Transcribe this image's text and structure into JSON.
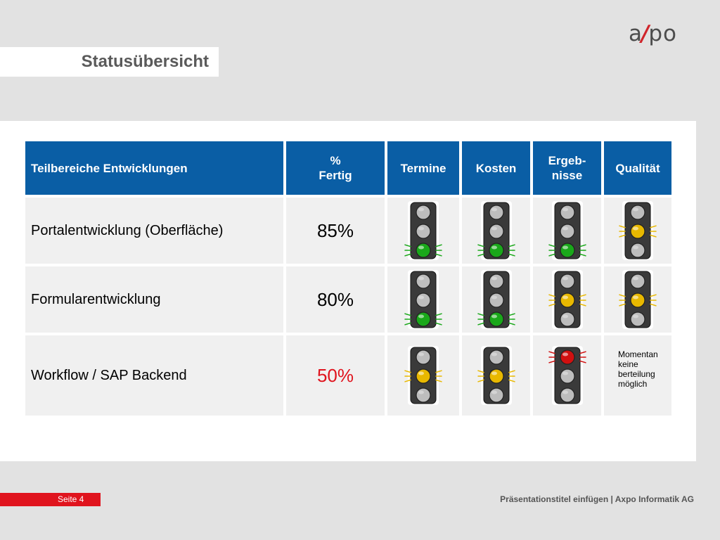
{
  "slide": {
    "title": "Statusübersicht",
    "logo": {
      "left": "a",
      "slash": "/",
      "right": "po"
    }
  },
  "table": {
    "headers": {
      "area": "Teilbereiche Entwicklungen",
      "pct_line1": "%",
      "pct_line2": "Fertig",
      "termine": "Termine",
      "kosten": "Kosten",
      "ergeb_line1": "Ergeb-",
      "ergeb_line2": "nisse",
      "qualitaet": "Qualität"
    },
    "rows": [
      {
        "name": "Portalentwicklung (Oberfläche)",
        "pct": "85%",
        "lights": [
          "green",
          "green",
          "green",
          "yellow"
        ]
      },
      {
        "name": "Formularentwicklung",
        "pct": "80%",
        "lights": [
          "green",
          "green",
          "yellow",
          "yellow"
        ]
      },
      {
        "name": "Workflow / SAP Backend",
        "pct": "50%",
        "lights": [
          "yellow",
          "yellow",
          "red",
          null
        ],
        "note": [
          "Momentan",
          "keine",
          "berteilung",
          "möglich"
        ]
      }
    ]
  },
  "colors": {
    "green": "#1aa81a",
    "yellow": "#e8b800",
    "red": "#d01010",
    "header": "#0a5ea5"
  },
  "footer": {
    "page": "Seite 4",
    "text": "Präsentationstitel einfügen | Axpo Informatik AG"
  }
}
